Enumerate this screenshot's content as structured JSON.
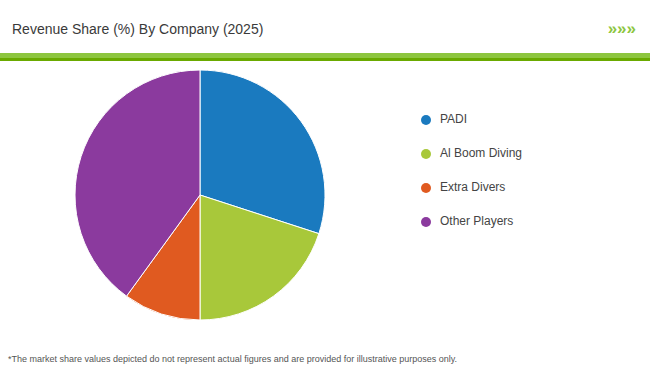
{
  "chart_data": {
    "type": "pie",
    "title": "Revenue Share (%) By Company (2025)",
    "categories": [
      "PADI",
      "Al Boom Diving",
      "Extra Divers",
      "Other Players"
    ],
    "values": [
      30,
      20,
      10,
      40
    ],
    "colors": [
      "#1a7abf",
      "#a8c83a",
      "#e05a20",
      "#8b3a9e"
    ],
    "legend": "right",
    "annotations": [
      "*The market share values depicted do not represent actual figures and are provided for illustrative purposes only.",
      "»»»"
    ]
  }
}
